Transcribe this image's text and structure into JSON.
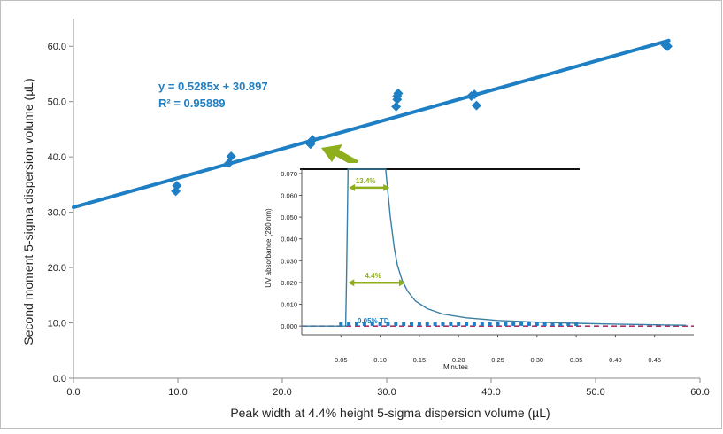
{
  "chart_data": [
    {
      "type": "scatter",
      "xlabel": "Peak width at 4.4% height 5-sigma dispersion volume (µL)",
      "ylabel": "Second moment 5-sigma dispersion volume (µL)",
      "xlim": [
        0,
        60
      ],
      "ylim": [
        0,
        65
      ],
      "xticks": [
        "0.0",
        "10.0",
        "20.0",
        "30.0",
        "40.0",
        "50.0",
        "60.0"
      ],
      "yticks": [
        "0.0",
        "10.0",
        "20.0",
        "30.0",
        "40.0",
        "50.0",
        "60.0"
      ],
      "grid": false,
      "series": [
        {
          "points": [
            [
              9.8,
              33.8
            ],
            [
              9.9,
              34.8
            ],
            [
              14.9,
              38.9
            ],
            [
              15.1,
              40.1
            ],
            [
              22.7,
              42.3
            ],
            [
              22.9,
              43.1
            ],
            [
              30.9,
              49.1
            ],
            [
              31.0,
              50.4
            ],
            [
              31.0,
              51.0
            ],
            [
              31.1,
              51.5
            ],
            [
              38.1,
              51.0
            ],
            [
              38.4,
              51.3
            ],
            [
              38.6,
              49.3
            ],
            [
              56.7,
              60.2
            ],
            [
              56.9,
              60.0
            ]
          ],
          "color": "#1e7fc4"
        }
      ],
      "trendline": {
        "slope": 0.5285,
        "intercept": 30.897,
        "color": "#1e7fc4",
        "x_range": [
          0,
          57
        ]
      },
      "annotations": {
        "equation": "y = 0.5285x + 30.897",
        "r2": "R² = 0.95889"
      },
      "arrow_color": "#8fae1b"
    },
    {
      "type": "line",
      "xlabel": "Minutes",
      "ylabel": "UV absorbance (280 nm)",
      "xlim": [
        0,
        0.5
      ],
      "ylim": [
        -0.004,
        0.072
      ],
      "xticks": [
        "0.05",
        "0.10",
        "0.15",
        "0.20",
        "0.25",
        "0.30",
        "0.35",
        "0.40",
        "0.45"
      ],
      "yticks": [
        "0.000",
        "0.010",
        "0.020",
        "0.030",
        "0.040",
        "0.050",
        "0.060",
        "0.070"
      ],
      "series": [
        {
          "curve": [
            [
              0.0,
              0.0
            ],
            [
              0.056,
              0.0
            ],
            [
              0.057,
              0.02
            ],
            [
              0.058,
              0.045
            ],
            [
              0.059,
              0.072
            ],
            [
              0.107,
              0.072
            ],
            [
              0.113,
              0.05
            ],
            [
              0.118,
              0.036
            ],
            [
              0.122,
              0.028
            ],
            [
              0.128,
              0.021
            ],
            [
              0.135,
              0.016
            ],
            [
              0.145,
              0.0115
            ],
            [
              0.16,
              0.008
            ],
            [
              0.18,
              0.0055
            ],
            [
              0.21,
              0.0038
            ],
            [
              0.25,
              0.0026
            ],
            [
              0.3,
              0.0018
            ],
            [
              0.35,
              0.0013
            ],
            [
              0.4,
              0.0009
            ],
            [
              0.45,
              0.0006
            ],
            [
              0.49,
              0.0004
            ]
          ],
          "color": "#3a7ea3"
        }
      ],
      "baseline": {
        "y": 0.0,
        "color": "#b0306a"
      },
      "td_label": "0.05% TD",
      "td_color": "#1e7fc4",
      "td_squares_x": [
        0.05,
        0.06,
        0.07,
        0.08,
        0.09,
        0.1,
        0.11,
        0.12,
        0.13,
        0.14,
        0.15,
        0.16,
        0.17,
        0.18,
        0.19,
        0.2,
        0.21,
        0.22,
        0.23,
        0.24,
        0.25,
        0.26,
        0.27,
        0.28,
        0.29,
        0.3,
        0.31,
        0.32,
        0.33,
        0.34,
        0.35
      ],
      "width_markers": [
        {
          "label": "13.4%",
          "x_start": 0.06,
          "x_end": 0.112,
          "y": 0.0635
        },
        {
          "label": "4.4%",
          "x_start": 0.059,
          "x_end": 0.132,
          "y": 0.0199
        }
      ],
      "marker_color": "#8fae1b"
    }
  ]
}
